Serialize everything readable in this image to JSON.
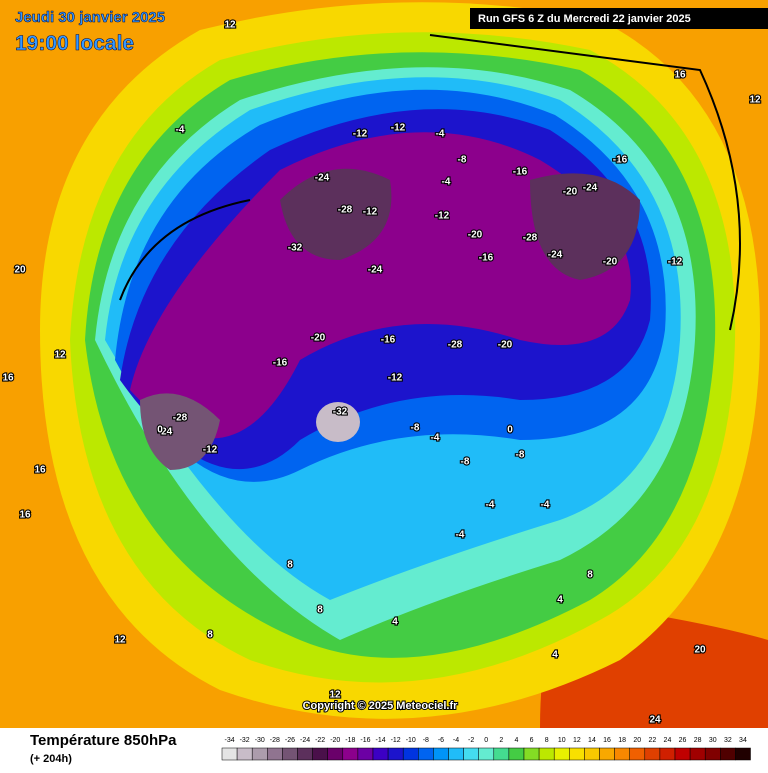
{
  "header": {
    "date": "Jeudi 30 janvier 2025",
    "time": "19:00 locale",
    "run": "Run GFS 6 Z du Mercredi 22 janvier 2025"
  },
  "map": {
    "copyright": "Copyright © 2025 Meteociel.fr",
    "contour_labels": [
      -12,
      -12,
      -4,
      -8,
      -12,
      -16,
      -4,
      -24,
      -28,
      -32,
      -12,
      -24,
      -20,
      -16,
      -28,
      -24,
      -20,
      -16,
      -24,
      -20,
      -12,
      -28,
      -20,
      -16,
      -28,
      -12,
      -24,
      -20,
      -16,
      -32,
      -12,
      -8,
      -4,
      -8,
      -4,
      -8,
      0,
      -4,
      4,
      8,
      -4,
      4,
      8,
      12,
      16,
      12,
      16,
      8,
      20,
      24,
      16,
      12,
      8,
      16,
      12,
      20,
      -4,
      0,
      4,
      12
    ]
  },
  "footer": {
    "title": "Température 850hPa",
    "lead": "(+ 204h)",
    "scale": {
      "values": [
        -34,
        -32,
        -30,
        -28,
        -26,
        -24,
        -22,
        -20,
        -18,
        -16,
        -14,
        -12,
        -10,
        -8,
        -6,
        -4,
        -2,
        0,
        2,
        4,
        6,
        8,
        10,
        12,
        14,
        16,
        18,
        20,
        22,
        24,
        26,
        28,
        30,
        32,
        34
      ],
      "colors": [
        "#e4e4e4",
        "#c8bcc8",
        "#ac9cac",
        "#907490",
        "#745474",
        "#5c305c",
        "#4a104a",
        "#6a006a",
        "#8c008c",
        "#6c00a4",
        "#3c00c4",
        "#1c14cc",
        "#0034e0",
        "#0064f0",
        "#0094f8",
        "#20bcf8",
        "#44dcf0",
        "#64ecd0",
        "#44dc90",
        "#44cc44",
        "#84dc24",
        "#bce800",
        "#e8f000",
        "#f8e000",
        "#f8c800",
        "#f8a800",
        "#f88800",
        "#f06000",
        "#e04000",
        "#d02000",
        "#c00000",
        "#a00000",
        "#800000",
        "#500000",
        "#200000"
      ]
    }
  }
}
